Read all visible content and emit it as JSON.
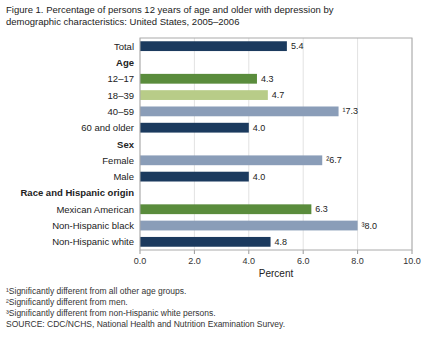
{
  "chart_data": {
    "type": "bar",
    "orientation": "horizontal",
    "title": "Figure 1. Percentage of persons 12 years of age and older with depression by",
    "subtitle": "demographic characteristics: United States, 2005–2006",
    "categories": [
      "Total",
      "Age",
      "12–17",
      "18–39",
      "40–59",
      "60 and older",
      "Sex",
      "Female",
      "Male",
      "Race and Hispanic origin",
      "Mexican American",
      "Non-Hispanic black",
      "Non-Hispanic white"
    ],
    "values": [
      5.4,
      null,
      4.3,
      4.7,
      7.3,
      4.0,
      null,
      6.7,
      4.0,
      null,
      6.3,
      8.0,
      4.8
    ],
    "value_labels": [
      "5.4",
      null,
      "4.3",
      "4.7",
      "¹7.3",
      "4.0",
      null,
      "²6.7",
      "4.0",
      null,
      "6.3",
      "³8.0",
      "4.8"
    ],
    "colors": [
      "#1b3a5e",
      null,
      "#5a8c3c",
      "#b8cc88",
      "#8a9db8",
      "#1b3a5e",
      null,
      "#8a9db8",
      "#1b3a5e",
      null,
      "#5a8c3c",
      "#8a9db8",
      "#1b3a5e"
    ],
    "xlabel": "Percent",
    "xlim": [
      0,
      10.0
    ],
    "xticks": [
      {
        "value": 0.0,
        "label": "0.0"
      },
      {
        "value": 2.0,
        "label": "2.0"
      },
      {
        "value": 4.0,
        "label": "4.0"
      },
      {
        "value": 6.0,
        "label": "6.0"
      },
      {
        "value": 8.0,
        "label": "8.0"
      },
      {
        "value": 10.0,
        "label": "10.0"
      }
    ],
    "grid": true,
    "data_labels": true,
    "annotations": [
      "¹Significantly different from all other age groups.",
      "²Significantly different from men.",
      "³Significantly different from non-Hispanic white persons.",
      "SOURCE:  CDC/NCHS, National Health and Nutrition Examination Survey."
    ]
  }
}
